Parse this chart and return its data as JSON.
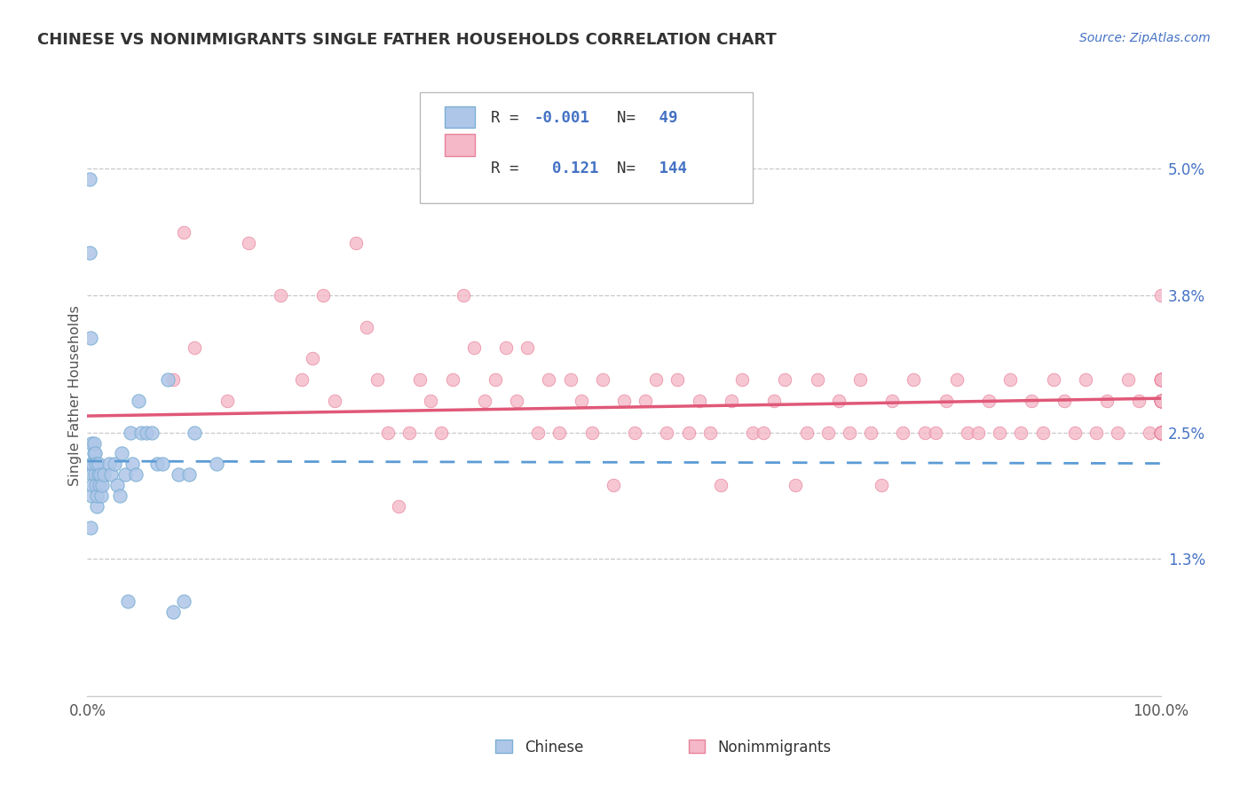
{
  "title": "CHINESE VS NONIMMIGRANTS SINGLE FATHER HOUSEHOLDS CORRELATION CHART",
  "source": "Source: ZipAtlas.com",
  "ylabel": "Single Father Households",
  "y_ticks_labels": [
    "1.3%",
    "2.5%",
    "3.8%",
    "5.0%"
  ],
  "y_tick_vals": [
    0.013,
    0.025,
    0.038,
    0.05
  ],
  "x_lim": [
    0.0,
    1.0
  ],
  "y_lim": [
    0.0,
    0.057
  ],
  "legend_r1": "-0.001",
  "legend_n1": "49",
  "legend_r2": "0.121",
  "legend_n2": "144",
  "chinese_fill": "#aec6e8",
  "chinese_edge": "#7bafd4",
  "nonimm_fill": "#f4b8c8",
  "nonimm_edge": "#e8829a",
  "chinese_line_color": "#5b9bd5",
  "nonimm_line_color": "#e05878",
  "bg_color": "#ffffff",
  "grid_color": "#c8c8c8",
  "legend_box_color": "#e0e0e0",
  "r_value_color": "#4472c4",
  "n_value_color": "#4472c4",
  "chinese_scatter_x": [
    0.002,
    0.002,
    0.003,
    0.003,
    0.004,
    0.004,
    0.004,
    0.005,
    0.005,
    0.005,
    0.006,
    0.006,
    0.007,
    0.007,
    0.008,
    0.008,
    0.009,
    0.009,
    0.01,
    0.01,
    0.011,
    0.012,
    0.013,
    0.014,
    0.015,
    0.02,
    0.022,
    0.025,
    0.028,
    0.03,
    0.032,
    0.035,
    0.038,
    0.04,
    0.042,
    0.045,
    0.048,
    0.05,
    0.055,
    0.06,
    0.065,
    0.07,
    0.075,
    0.08,
    0.085,
    0.09,
    0.095,
    0.1,
    0.12
  ],
  "chinese_scatter_y": [
    0.049,
    0.042,
    0.034,
    0.016,
    0.019,
    0.022,
    0.024,
    0.021,
    0.022,
    0.02,
    0.023,
    0.024,
    0.021,
    0.023,
    0.022,
    0.02,
    0.018,
    0.019,
    0.021,
    0.022,
    0.02,
    0.021,
    0.019,
    0.02,
    0.021,
    0.022,
    0.021,
    0.022,
    0.02,
    0.019,
    0.023,
    0.021,
    0.009,
    0.025,
    0.022,
    0.021,
    0.028,
    0.025,
    0.025,
    0.025,
    0.022,
    0.022,
    0.03,
    0.008,
    0.021,
    0.009,
    0.021,
    0.025,
    0.022
  ],
  "nonimm_scatter_x": [
    0.08,
    0.09,
    0.1,
    0.13,
    0.15,
    0.18,
    0.2,
    0.21,
    0.22,
    0.23,
    0.25,
    0.26,
    0.27,
    0.28,
    0.29,
    0.3,
    0.31,
    0.32,
    0.33,
    0.34,
    0.35,
    0.36,
    0.37,
    0.38,
    0.39,
    0.4,
    0.41,
    0.42,
    0.43,
    0.44,
    0.45,
    0.46,
    0.47,
    0.48,
    0.49,
    0.5,
    0.51,
    0.52,
    0.53,
    0.54,
    0.55,
    0.56,
    0.57,
    0.58,
    0.59,
    0.6,
    0.61,
    0.62,
    0.63,
    0.64,
    0.65,
    0.66,
    0.67,
    0.68,
    0.69,
    0.7,
    0.71,
    0.72,
    0.73,
    0.74,
    0.75,
    0.76,
    0.77,
    0.78,
    0.79,
    0.8,
    0.81,
    0.82,
    0.83,
    0.84,
    0.85,
    0.86,
    0.87,
    0.88,
    0.89,
    0.9,
    0.91,
    0.92,
    0.93,
    0.94,
    0.95,
    0.96,
    0.97,
    0.98,
    0.99,
    1.0,
    1.0,
    1.0,
    1.0,
    1.0,
    1.0,
    1.0,
    1.0,
    1.0,
    1.0,
    1.0,
    1.0,
    1.0,
    1.0,
    1.0,
    1.0,
    1.0,
    1.0,
    1.0,
    1.0,
    1.0,
    1.0,
    1.0,
    1.0,
    1.0,
    1.0,
    1.0,
    1.0,
    1.0,
    1.0,
    1.0,
    1.0,
    1.0,
    1.0,
    1.0,
    1.0,
    1.0,
    1.0,
    1.0,
    1.0,
    1.0,
    1.0,
    1.0,
    1.0,
    1.0,
    1.0,
    1.0,
    1.0,
    1.0,
    1.0,
    1.0,
    1.0,
    1.0,
    1.0,
    1.0,
    1.0,
    1.0
  ],
  "nonimm_scatter_y": [
    0.03,
    0.044,
    0.033,
    0.028,
    0.043,
    0.038,
    0.03,
    0.032,
    0.038,
    0.028,
    0.043,
    0.035,
    0.03,
    0.025,
    0.018,
    0.025,
    0.03,
    0.028,
    0.025,
    0.03,
    0.038,
    0.033,
    0.028,
    0.03,
    0.033,
    0.028,
    0.033,
    0.025,
    0.03,
    0.025,
    0.03,
    0.028,
    0.025,
    0.03,
    0.02,
    0.028,
    0.025,
    0.028,
    0.03,
    0.025,
    0.03,
    0.025,
    0.028,
    0.025,
    0.02,
    0.028,
    0.03,
    0.025,
    0.025,
    0.028,
    0.03,
    0.02,
    0.025,
    0.03,
    0.025,
    0.028,
    0.025,
    0.03,
    0.025,
    0.02,
    0.028,
    0.025,
    0.03,
    0.025,
    0.025,
    0.028,
    0.03,
    0.025,
    0.025,
    0.028,
    0.025,
    0.03,
    0.025,
    0.028,
    0.025,
    0.03,
    0.028,
    0.025,
    0.03,
    0.025,
    0.028,
    0.025,
    0.03,
    0.028,
    0.025,
    0.028,
    0.025,
    0.03,
    0.028,
    0.025,
    0.028,
    0.025,
    0.03,
    0.028,
    0.025,
    0.028,
    0.025,
    0.03,
    0.025,
    0.025,
    0.028,
    0.025,
    0.03,
    0.025,
    0.028,
    0.03,
    0.025,
    0.028,
    0.025,
    0.03,
    0.025,
    0.028,
    0.025,
    0.03,
    0.025,
    0.025,
    0.028,
    0.025,
    0.03,
    0.028,
    0.025,
    0.025,
    0.028,
    0.025,
    0.03,
    0.025,
    0.025,
    0.028,
    0.025,
    0.025,
    0.03,
    0.028,
    0.025,
    0.028,
    0.025,
    0.03,
    0.025,
    0.028,
    0.025,
    0.028,
    0.025,
    0.038
  ]
}
